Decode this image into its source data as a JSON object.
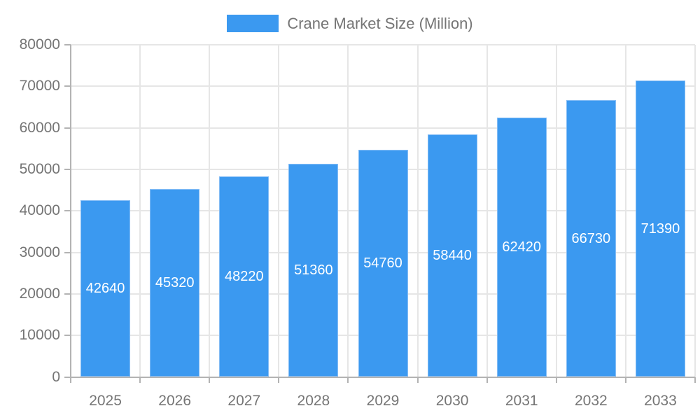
{
  "legend": {
    "label": "Crane Market Size (Million)"
  },
  "colors": {
    "bar_fill": "#3B99F0",
    "bar_stroke": "#85BDF5",
    "axis_line": "#b3b3b3",
    "grid_line": "#e6e6e6",
    "text": "#757575",
    "bar_label_text": "#ffffff",
    "background": "#ffffff"
  },
  "chart_data": {
    "type": "bar",
    "title": "Crane Market Size (Million)",
    "series_name": "Crane Market Size (Million)",
    "categories": [
      "2025",
      "2026",
      "2027",
      "2028",
      "2029",
      "2030",
      "2031",
      "2032",
      "2033"
    ],
    "values": [
      42640,
      45320,
      48220,
      51360,
      54760,
      58440,
      62420,
      66730,
      71390
    ],
    "xlabel": "",
    "ylabel": "",
    "ylim": [
      0,
      80000
    ],
    "ytick_step": 10000,
    "ytick_labels": [
      "0",
      "10000",
      "20000",
      "30000",
      "40000",
      "50000",
      "60000",
      "70000",
      "80000"
    ],
    "grid": true,
    "legend_position": "top-center",
    "bar_labels_visible": true,
    "bar_label_position": "center-inside"
  }
}
